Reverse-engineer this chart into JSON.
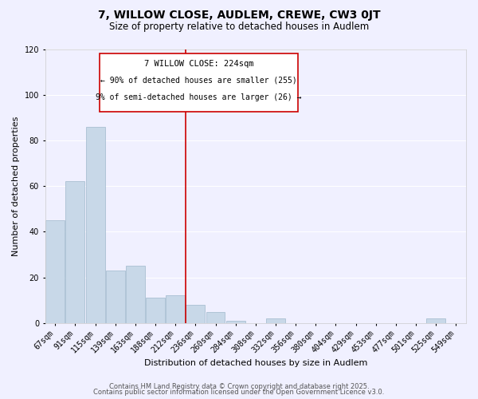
{
  "title": "7, WILLOW CLOSE, AUDLEM, CREWE, CW3 0JT",
  "subtitle": "Size of property relative to detached houses in Audlem",
  "xlabel": "Distribution of detached houses by size in Audlem",
  "ylabel": "Number of detached properties",
  "bar_labels": [
    "67sqm",
    "91sqm",
    "115sqm",
    "139sqm",
    "163sqm",
    "188sqm",
    "212sqm",
    "236sqm",
    "260sqm",
    "284sqm",
    "308sqm",
    "332sqm",
    "356sqm",
    "380sqm",
    "404sqm",
    "429sqm",
    "453sqm",
    "477sqm",
    "501sqm",
    "525sqm",
    "549sqm"
  ],
  "bar_values": [
    45,
    62,
    86,
    23,
    25,
    11,
    12,
    8,
    5,
    1,
    0,
    2,
    0,
    0,
    0,
    0,
    0,
    0,
    0,
    2,
    0
  ],
  "bar_color": "#c8d8e8",
  "bar_edge_color": "#a0b8cc",
  "vline_x_index": 6.5,
  "vline_color": "#cc0000",
  "ylim": [
    0,
    120
  ],
  "yticks": [
    0,
    20,
    40,
    60,
    80,
    100,
    120
  ],
  "annotation_title": "7 WILLOW CLOSE: 224sqm",
  "annotation_line1": "← 90% of detached houses are smaller (255)",
  "annotation_line2": "9% of semi-detached houses are larger (26) →",
  "footer_line1": "Contains HM Land Registry data © Crown copyright and database right 2025.",
  "footer_line2": "Contains public sector information licensed under the Open Government Licence v3.0.",
  "background_color": "#f0f0ff",
  "grid_color": "#ffffff",
  "title_fontsize": 10,
  "subtitle_fontsize": 8.5,
  "xlabel_fontsize": 8,
  "ylabel_fontsize": 8,
  "tick_fontsize": 7,
  "annotation_fontsize_title": 7.5,
  "annotation_fontsize_body": 7,
  "footer_fontsize": 6
}
